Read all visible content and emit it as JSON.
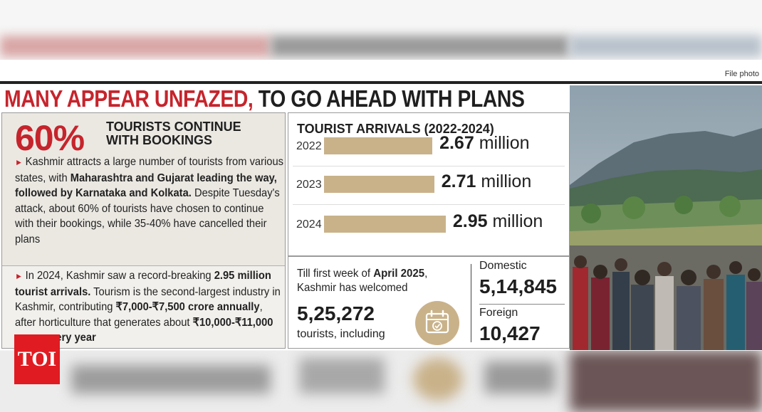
{
  "header": {
    "file_photo": "File photo",
    "headline_red": "MANY APPEAR UNFAZED,",
    "headline_dark": " TO GO AHEAD WITH PLANS"
  },
  "left": {
    "big_pct": "60%",
    "pct_label_line1": "TOURISTS CONTINUE",
    "pct_label_line2": "WITH BOOKINGS",
    "para1": {
      "t1": "Kashmir attracts a large number of tourists from various states, with ",
      "b1": "Maharashtra and Gujarat leading the way, followed by Karnataka and Kolkata.",
      "t2": " Despite Tuesday's attack, about 60% of tourists have chosen to continue with their bookings, while 35-40% have cancelled their plans"
    },
    "para2": {
      "t1": "In 2024, Kashmir saw a record-breaking ",
      "b1": "2.95 million tourist arrivals.",
      "t2": " Tourism is the second-largest industry in Kashmir, contributing ",
      "b2": "₹7,000-₹7,500 crore annually",
      "t3": ", after horticulture that generates about ",
      "b3": "₹10,000-₹11,000 crore every year"
    }
  },
  "chart_data": {
    "type": "bar",
    "title": "TOURIST ARRIVALS (2022-2024)",
    "categories": [
      "2022",
      "2023",
      "2024"
    ],
    "values": [
      2.67,
      2.71,
      2.95
    ],
    "value_labels": [
      "2.67",
      "2.71",
      "2.95"
    ],
    "unit": "million",
    "bar_color": "#c9b28a"
  },
  "summary": {
    "till_t1": "Till first week of ",
    "till_b1": "April 2025",
    "till_t2": ",",
    "till_line2": "Kashmir has welcomed",
    "total": "5,25,272",
    "including": "tourists, including",
    "domestic_label": "Domestic",
    "domestic_value": "5,14,845",
    "foreign_label": "Foreign",
    "foreign_value": "10,427"
  },
  "branding": {
    "logo_text": "TOI",
    "logo_color": "#e11b22"
  },
  "colors": {
    "accent_red": "#c6242c",
    "bar_tan": "#c9b28a"
  }
}
